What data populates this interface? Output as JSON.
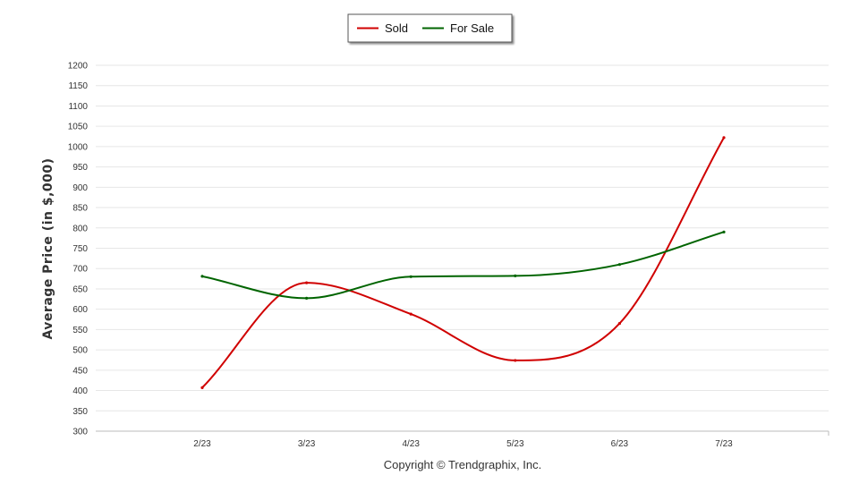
{
  "chart_data": {
    "type": "line",
    "categories": [
      "2/23",
      "3/23",
      "4/23",
      "5/23",
      "6/23",
      "7/23"
    ],
    "series": [
      {
        "name": "Sold",
        "color": "#d00000",
        "values": [
          407,
          665,
          588,
          474,
          565,
          1022
        ]
      },
      {
        "name": "For Sale",
        "color": "#006400",
        "values": [
          681,
          627,
          680,
          682,
          710,
          790
        ]
      }
    ],
    "ylabel": "Average Price (in $,000)",
    "ylim": [
      300,
      1200
    ],
    "yticks": [
      300,
      350,
      400,
      450,
      500,
      550,
      600,
      650,
      700,
      750,
      800,
      850,
      900,
      950,
      1000,
      1050,
      1100,
      1150,
      1200
    ],
    "grid": true,
    "legend_position": "top-center"
  },
  "credit": "Copyright © Trendgraphix, Inc."
}
